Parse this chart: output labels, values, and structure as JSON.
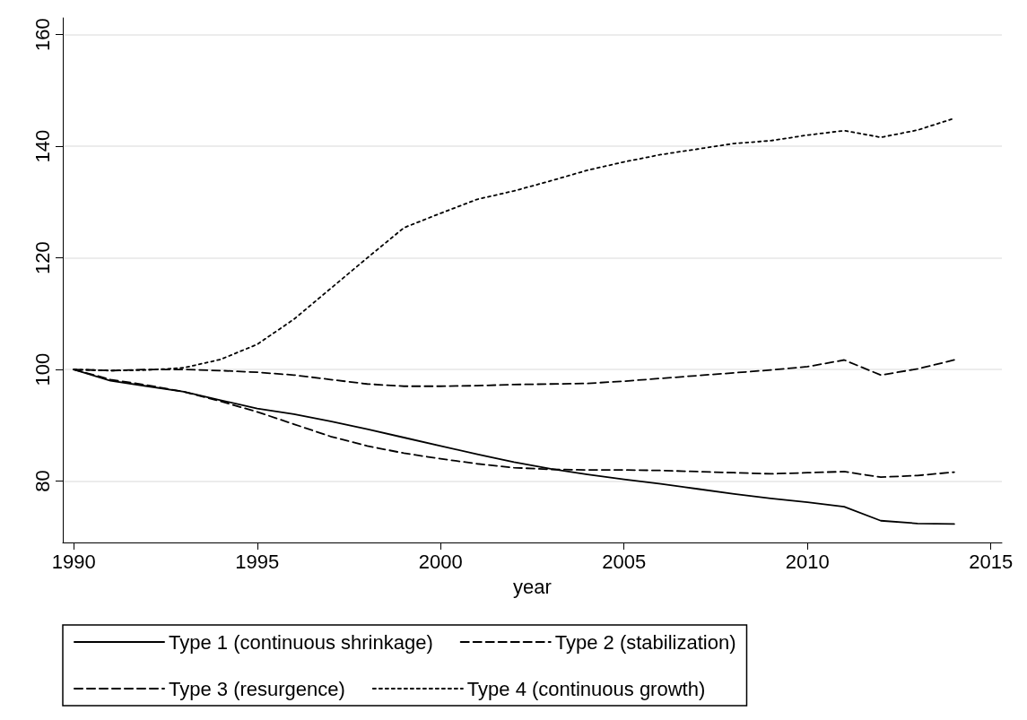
{
  "chart_data": {
    "type": "line",
    "xlabel": "year",
    "x": [
      1990,
      1991,
      1992,
      1993,
      1994,
      1995,
      1996,
      1997,
      1998,
      1999,
      2000,
      2001,
      2002,
      2003,
      2004,
      2005,
      2006,
      2007,
      2008,
      2009,
      2010,
      2011,
      2012,
      2013,
      2014
    ],
    "series": [
      {
        "name": "Type 1 (continuous shrinkage)",
        "color": "#000000",
        "line_style": "solid",
        "values": [
          100,
          98,
          97,
          96,
          94.5,
          93,
          92,
          90.7,
          89.3,
          87.8,
          86.3,
          84.8,
          83.4,
          82.2,
          81.2,
          80.3,
          79.5,
          78.6,
          77.7,
          76.9,
          76.2,
          75.4,
          72.9,
          72.4,
          72.3
        ]
      },
      {
        "name": "Type 2 (stabilization)",
        "color": "#000000",
        "line_style": "dashed",
        "values": [
          100,
          98.2,
          97.2,
          96,
          94.3,
          92.4,
          90.2,
          88,
          86.3,
          85,
          84,
          83.1,
          82.4,
          82.1,
          82,
          82,
          81.9,
          81.7,
          81.5,
          81.3,
          81.5,
          81.7,
          80.7,
          81,
          81.6
        ]
      },
      {
        "name": "Type 3 (resurgence)",
        "color": "#000000",
        "line_style": "dashed",
        "values": [
          100,
          99.8,
          100,
          100,
          99.8,
          99.5,
          99,
          98.2,
          97.4,
          97,
          97,
          97.1,
          97.3,
          97.4,
          97.5,
          97.9,
          98.4,
          98.9,
          99.4,
          99.9,
          100.5,
          101.7,
          99,
          100.1,
          101.7
        ]
      },
      {
        "name": "Type 4 (continuous growth)",
        "color": "#000000",
        "line_style": "dotted",
        "values": [
          100,
          99.8,
          99.9,
          100.3,
          101.8,
          104.5,
          109,
          114.5,
          120,
          125.4,
          128,
          130.5,
          132,
          133.8,
          135.7,
          137.2,
          138.5,
          139.5,
          140.5,
          141,
          142,
          142.8,
          141.6,
          142.9,
          145
        ]
      }
    ],
    "xlim": [
      1989.7,
      2015.3
    ],
    "xticks": [
      1990,
      1995,
      2000,
      2005,
      2010,
      2015
    ],
    "ylim": [
      69,
      163
    ],
    "yticks": [
      80,
      100,
      120,
      140,
      160
    ],
    "grid": "y",
    "legend": "bottom",
    "marker": "none"
  }
}
